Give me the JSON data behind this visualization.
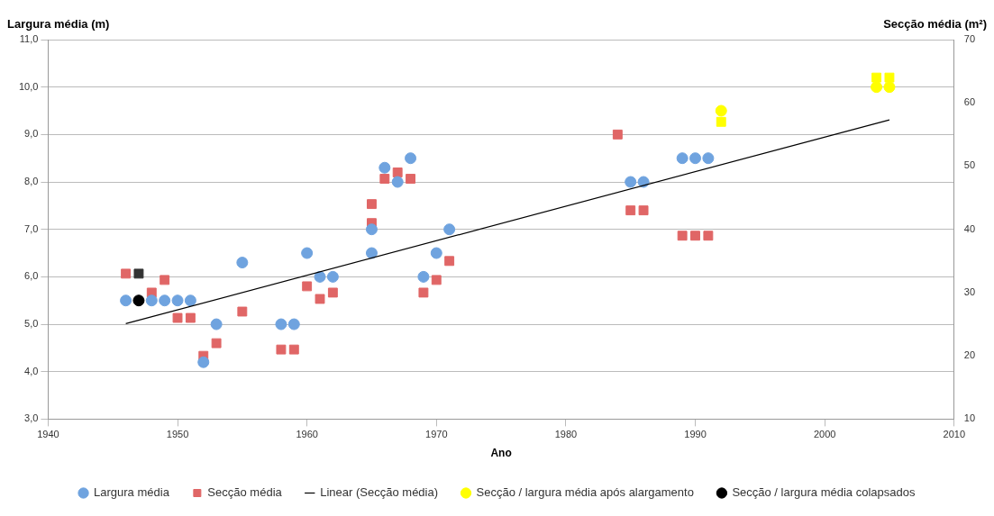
{
  "chart_data": {
    "type": "scatter",
    "xlabel": "Ano",
    "ylabel": "Largura média (m)",
    "y2label": "Secção média (m²)",
    "xlim": [
      1940,
      2010
    ],
    "xticks": [
      1940,
      1950,
      1960,
      1970,
      1980,
      1990,
      2000,
      2010
    ],
    "ylim": [
      3,
      11
    ],
    "yticks": [
      {
        "value": 3,
        "label": "3,0"
      },
      {
        "value": 4,
        "label": "4,0"
      },
      {
        "value": 5,
        "label": "5,0"
      },
      {
        "value": 6,
        "label": "6,0"
      },
      {
        "value": 7,
        "label": "7,0"
      },
      {
        "value": 8,
        "label": "8,0"
      },
      {
        "value": 9,
        "label": "9,0"
      },
      {
        "value": 10,
        "label": "10,0"
      },
      {
        "value": 11,
        "label": "11,0"
      }
    ],
    "y2lim": [
      10,
      70
    ],
    "y2ticks": [
      10,
      20,
      30,
      40,
      50,
      60,
      70
    ],
    "grid": "y",
    "legend": "bottom",
    "series": [
      {
        "name": "Largura média",
        "type": "scatter",
        "marker": "circle",
        "color": "#6fa3df",
        "x": [
          1946,
          1948,
          1949,
          1950,
          1951,
          1952,
          1953,
          1955,
          1958,
          1959,
          1960,
          1961,
          1962,
          1965,
          1965,
          1966,
          1967,
          1968,
          1969,
          1970,
          1971,
          1985,
          1986,
          1989,
          1990,
          1991
        ],
        "values": [
          5.5,
          5.5,
          5.5,
          5.5,
          5.5,
          4.2,
          5.0,
          6.3,
          5.0,
          5.0,
          6.5,
          6.0,
          6.0,
          7.0,
          6.5,
          8.3,
          8.0,
          8.5,
          6.0,
          6.5,
          7.0,
          8.0,
          8.0,
          8.5,
          8.5,
          8.5
        ]
      },
      {
        "name": "Secção média",
        "type": "scatter",
        "marker": "square",
        "axis": "y2",
        "color": "#e06666",
        "x": [
          1946,
          1948,
          1949,
          1950,
          1951,
          1952,
          1953,
          1955,
          1958,
          1959,
          1960,
          1961,
          1962,
          1965,
          1965,
          1966,
          1967,
          1968,
          1969,
          1970,
          1971,
          1984,
          1985,
          1986,
          1989,
          1990,
          1991
        ],
        "values": [
          33,
          30,
          32,
          26,
          26,
          20,
          22,
          27,
          21,
          21,
          31,
          29,
          30,
          44,
          41,
          48,
          49,
          48,
          30,
          32,
          35,
          55,
          43,
          43,
          39,
          39,
          39
        ]
      },
      {
        "name": "Linear (Secção média)",
        "type": "line",
        "marker": "none",
        "axis": "y2",
        "color": "#000000",
        "x": [
          1946,
          2005
        ],
        "values": [
          25.1,
          57.3
        ]
      },
      {
        "name": "Secção / largura média após alargamento",
        "type": "scatter",
        "marker": "circle",
        "color": "#ffff00",
        "x": [
          1992,
          2004,
          2005
        ],
        "values": [
          9.5,
          10.0,
          10.0
        ]
      },
      {
        "type": "scatter",
        "marker": "square",
        "axis": "y2",
        "color": "#ffff00",
        "x": [
          1992,
          2004,
          2005
        ],
        "values": [
          57,
          64,
          64
        ]
      },
      {
        "name": "Secção / largura média colapsados",
        "type": "scatter",
        "marker": "circle",
        "color": "#000000",
        "x": [
          1947
        ],
        "values": [
          5.5
        ]
      },
      {
        "type": "scatter",
        "marker": "square",
        "axis": "y2",
        "color": "#333333",
        "x": [
          1947
        ],
        "values": [
          33
        ]
      }
    ]
  }
}
